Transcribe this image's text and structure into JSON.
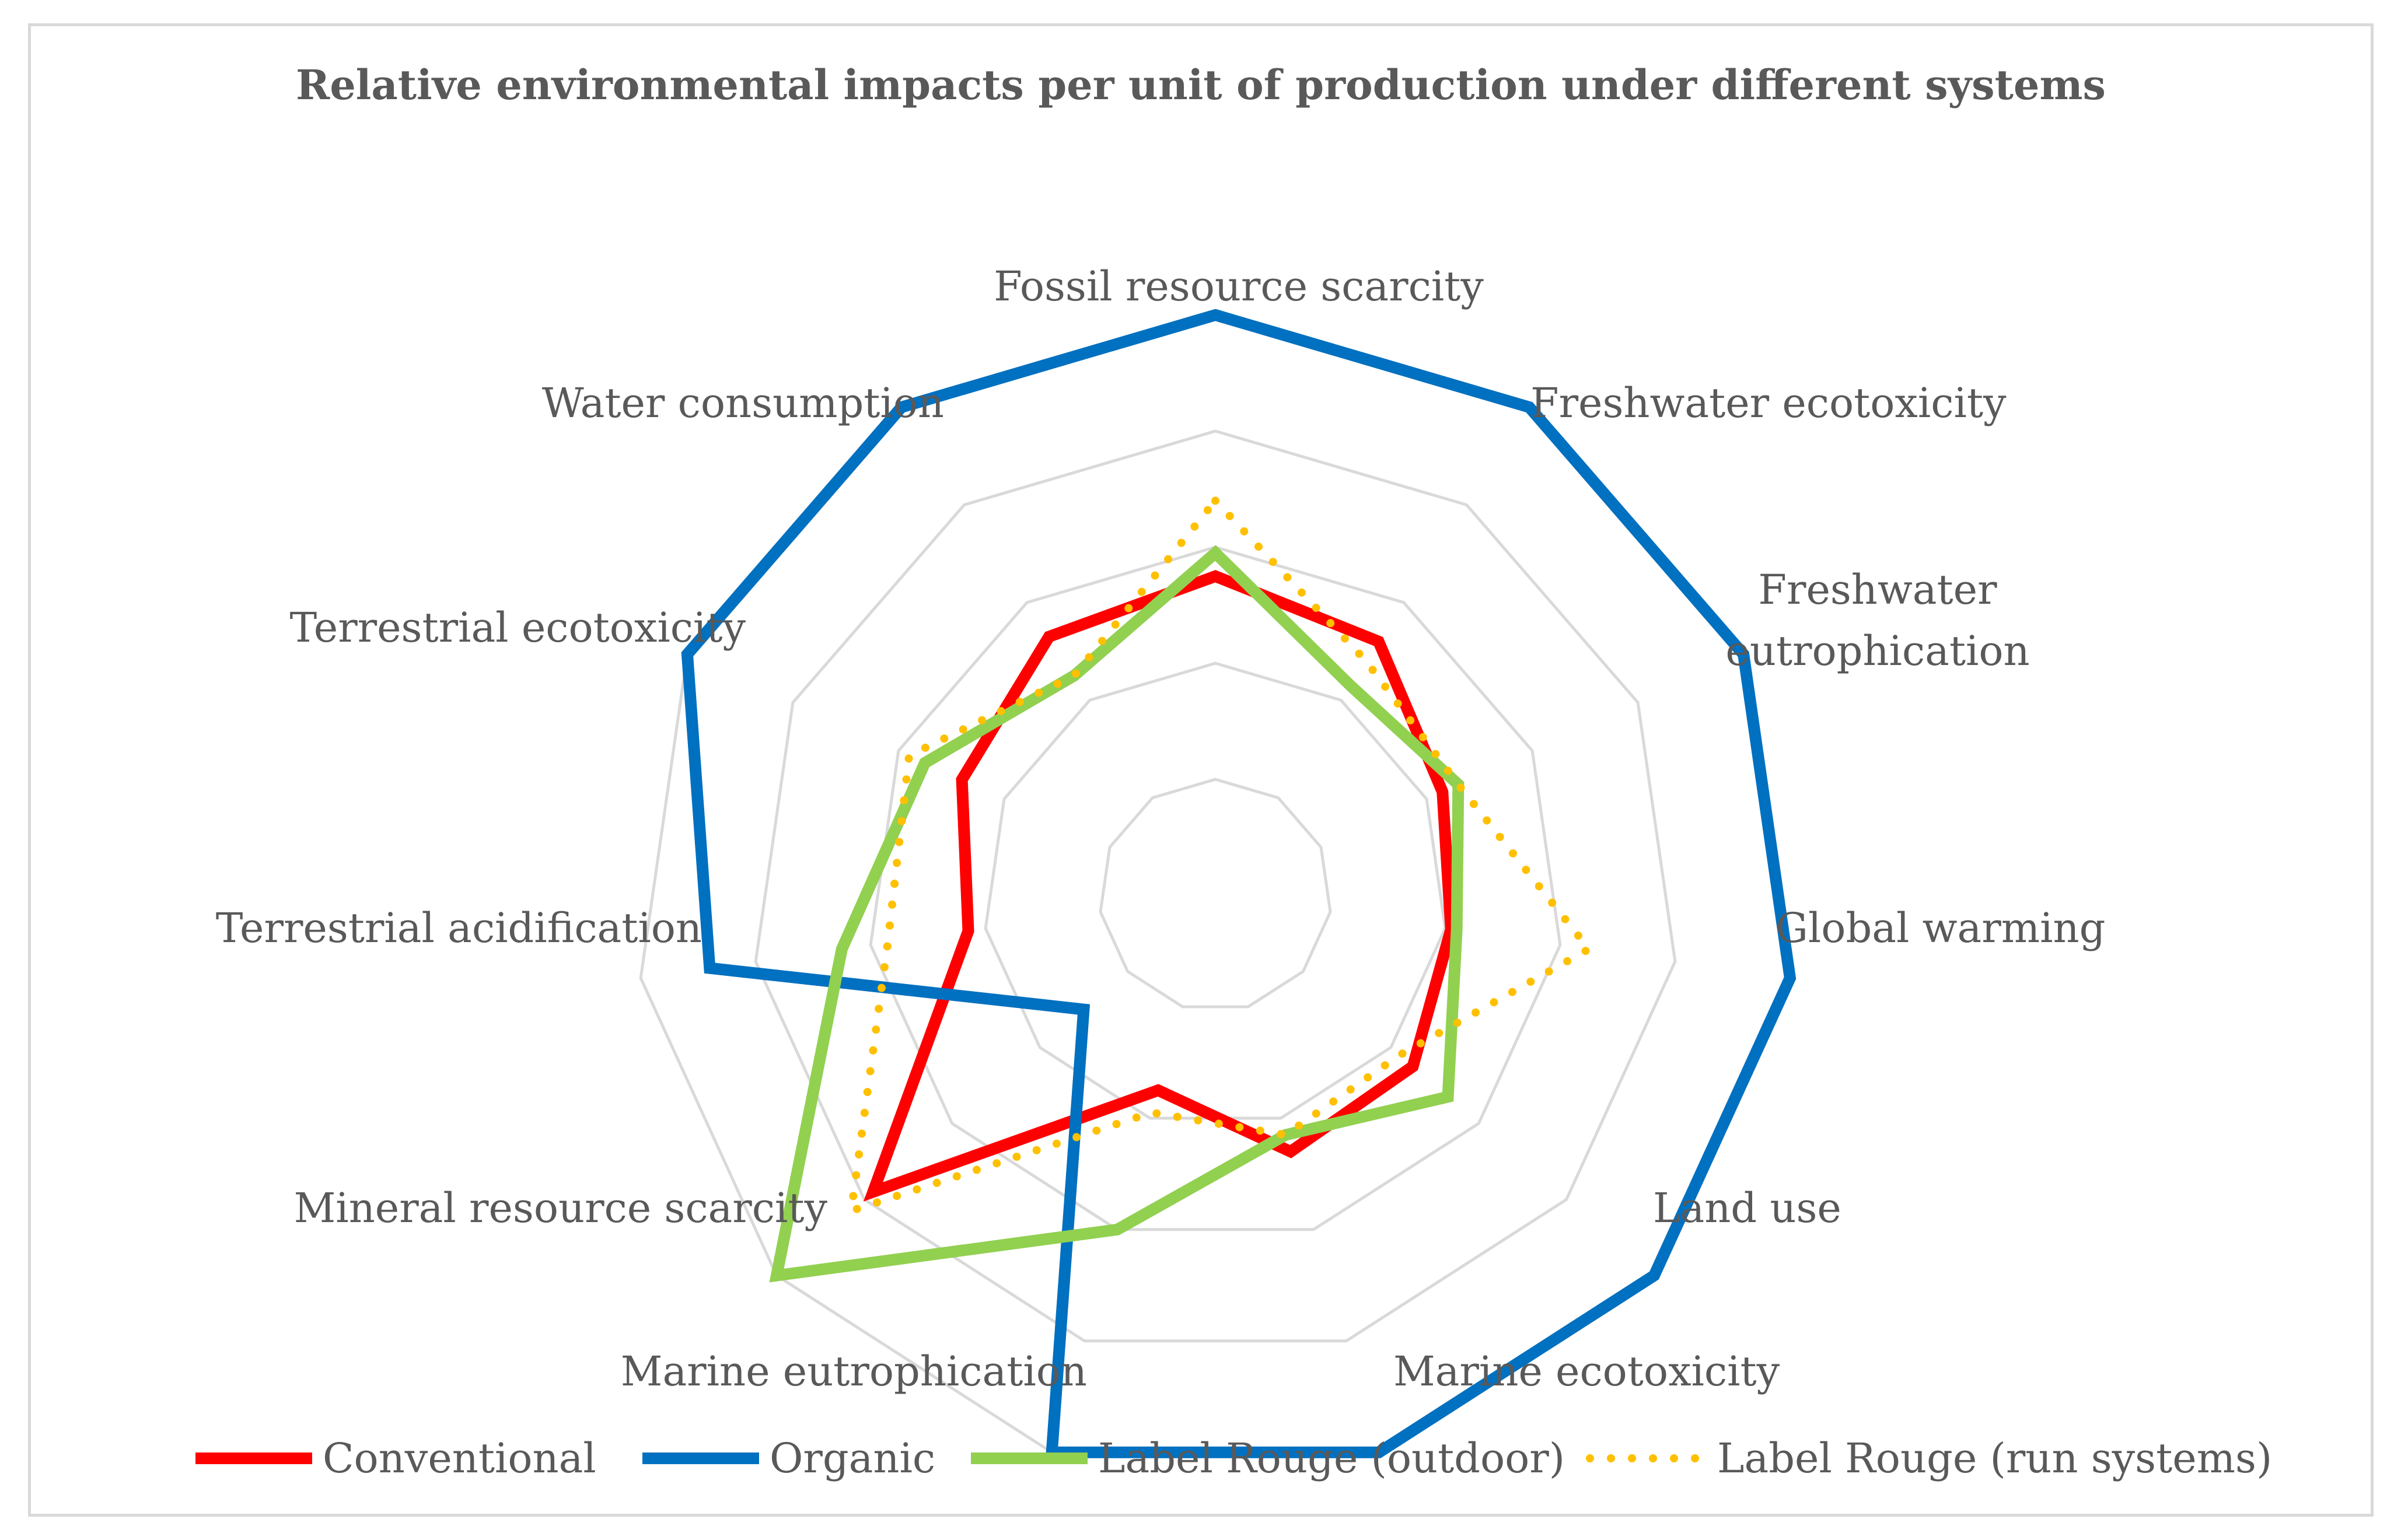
{
  "chart_data": {
    "type": "radar",
    "title": "Relative environmental impacts per unit of production under different systems",
    "axes": [
      [
        "Fossil resource scarcity"
      ],
      [
        "Freshwater ecotoxicity"
      ],
      [
        "Freshwater",
        "eutrophication"
      ],
      [
        "Global warming"
      ],
      [
        "Land use"
      ],
      [
        "Marine ecotoxicity"
      ],
      [
        "Marine eutrophication"
      ],
      [
        "Mineral resource scarcity"
      ],
      [
        "Terrestrial acidification"
      ],
      [
        "Terrestrial ecotoxicity"
      ],
      [
        "Water consumption"
      ]
    ],
    "grid_levels": [
      0.2,
      0.4,
      0.6,
      0.8,
      1.0
    ],
    "rmax": 1.0,
    "series": [
      {
        "name": "Conventional",
        "color": "#ff0000",
        "style": "solid",
        "values": [
          0.55,
          0.52,
          0.43,
          0.41,
          0.45,
          0.46,
          0.35,
          0.78,
          0.43,
          0.48,
          0.53
        ]
      },
      {
        "name": "Organic",
        "color": "#0070c0",
        "style": "solid",
        "values": [
          1.0,
          1.0,
          1.0,
          1.0,
          1.0,
          1.0,
          1.0,
          0.3,
          0.88,
          1.0,
          1.0
        ]
      },
      {
        "name": "Label Rouge (outdoor)",
        "color": "#92d050",
        "style": "solid",
        "values": [
          0.59,
          0.43,
          0.46,
          0.42,
          0.53,
          0.43,
          0.6,
          1.0,
          0.65,
          0.55,
          0.45
        ]
      },
      {
        "name": "Label Rouge (run systems)",
        "color": "#ffc000",
        "style": "dotted",
        "values": [
          0.68,
          0.48,
          0.46,
          0.65,
          0.42,
          0.43,
          0.39,
          0.83,
          0.57,
          0.58,
          0.45
        ]
      }
    ]
  }
}
